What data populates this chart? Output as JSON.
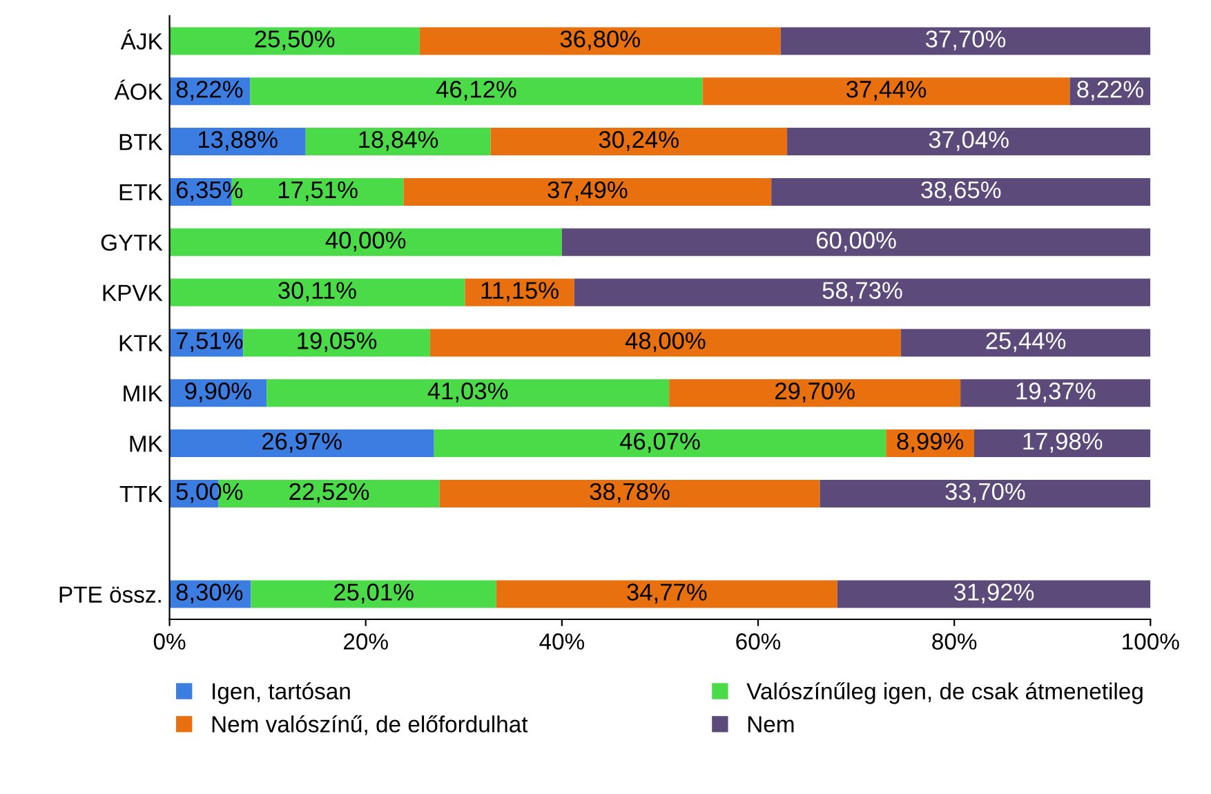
{
  "chart_data": {
    "type": "bar",
    "orientation": "horizontal",
    "stacked": true,
    "categories": [
      "ÁJK",
      "ÁOK",
      "BTK",
      "ETK",
      "GYTK",
      "KPVK",
      "KTK",
      "MIK",
      "MK",
      "TTK",
      null,
      "PTE össz."
    ],
    "series": [
      {
        "name": "Igen, tartósan",
        "color": "#3b7de0",
        "values": [
          null,
          8.22,
          13.88,
          6.35,
          null,
          null,
          7.51,
          9.9,
          26.97,
          5.0,
          null,
          8.3
        ],
        "value_labels": [
          null,
          "8,22%",
          "13,88%",
          "6,35%",
          null,
          null,
          "7,51%",
          "9,90%",
          "26,97%",
          "5,00%",
          null,
          "8,30%"
        ]
      },
      {
        "name": "Valószínűleg igen, de csak átmenetileg",
        "color": "#4cdb48",
        "values": [
          25.5,
          46.12,
          18.84,
          17.51,
          40.0,
          30.11,
          19.05,
          41.03,
          46.07,
          22.52,
          null,
          25.01
        ],
        "value_labels": [
          "25,50%",
          "46,12%",
          "18,84%",
          "17,51%",
          "40,00%",
          "30,11%",
          "19,05%",
          "41,03%",
          "46,07%",
          "22,52%",
          null,
          "25,01%"
        ]
      },
      {
        "name": "Nem valószínű, de előfordulhat",
        "color": "#e8700e",
        "values": [
          36.8,
          37.44,
          30.24,
          37.49,
          null,
          11.15,
          48.0,
          29.7,
          8.99,
          38.78,
          null,
          34.77
        ],
        "value_labels": [
          "36,80%",
          "37,44%",
          "30,24%",
          "37,49%",
          null,
          "11,15%",
          "48,00%",
          "29,70%",
          "8,99%",
          "38,78%",
          null,
          "34,77%"
        ]
      },
      {
        "name": "Nem",
        "color": "#5c4a7a",
        "values": [
          37.7,
          8.22,
          37.04,
          38.65,
          60.0,
          58.73,
          25.44,
          19.37,
          17.98,
          33.7,
          null,
          31.92
        ],
        "value_labels": [
          "37,70%",
          "8,22%",
          "37,04%",
          "38,65%",
          "60,00%",
          "58,73%",
          "25,44%",
          "19,37%",
          "17,98%",
          "33,70%",
          null,
          "31,92%"
        ]
      }
    ],
    "xlim": [
      0,
      100
    ],
    "xticks": [
      {
        "value": 0,
        "label": "0%"
      },
      {
        "value": 20,
        "label": "20%"
      },
      {
        "value": 40,
        "label": "40%"
      },
      {
        "value": 60,
        "label": "60%"
      },
      {
        "value": 80,
        "label": "80%"
      },
      {
        "value": 100,
        "label": "100%"
      }
    ],
    "grid": false,
    "legend": "bottom"
  }
}
